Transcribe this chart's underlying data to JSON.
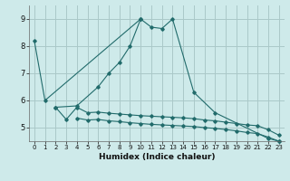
{
  "background_color": "#ceeaea",
  "grid_color": "#aac8c8",
  "line_color": "#216b6b",
  "xlabel": "Humidex (Indice chaleur)",
  "xlim": [
    -0.5,
    23.5
  ],
  "ylim": [
    4.5,
    9.5
  ],
  "yticks": [
    5,
    6,
    7,
    8,
    9
  ],
  "xticks": [
    0,
    1,
    2,
    3,
    4,
    5,
    6,
    7,
    8,
    9,
    10,
    11,
    12,
    13,
    14,
    15,
    16,
    17,
    18,
    19,
    20,
    21,
    22,
    23
  ],
  "series1_x": [
    0,
    1,
    10,
    11,
    12,
    13,
    15,
    17,
    22,
    23
  ],
  "series1_y": [
    8.2,
    6.0,
    9.0,
    8.7,
    8.65,
    9.0,
    6.3,
    5.55,
    4.6,
    4.5
  ],
  "series2_x": [
    2,
    4,
    6,
    7,
    8,
    9,
    10
  ],
  "series2_y": [
    5.75,
    5.8,
    6.5,
    7.0,
    7.4,
    8.0,
    9.0
  ],
  "series3_x": [
    2,
    3,
    4,
    5,
    6,
    7,
    8,
    9,
    10,
    11,
    12,
    13,
    14,
    15,
    16,
    17,
    18,
    19,
    20,
    21,
    22,
    23
  ],
  "series3_y": [
    5.75,
    5.3,
    5.75,
    5.55,
    5.57,
    5.53,
    5.5,
    5.47,
    5.44,
    5.42,
    5.4,
    5.38,
    5.36,
    5.33,
    5.28,
    5.25,
    5.2,
    5.15,
    5.1,
    5.07,
    4.92,
    4.72
  ],
  "series4_x": [
    4,
    5,
    6,
    7,
    8,
    9,
    10,
    11,
    12,
    13,
    14,
    15,
    16,
    17,
    18,
    19,
    20,
    21,
    22,
    23
  ],
  "series4_y": [
    5.35,
    5.28,
    5.3,
    5.25,
    5.22,
    5.18,
    5.15,
    5.12,
    5.1,
    5.08,
    5.06,
    5.04,
    5.0,
    4.97,
    4.93,
    4.88,
    4.82,
    4.78,
    4.65,
    4.5
  ]
}
